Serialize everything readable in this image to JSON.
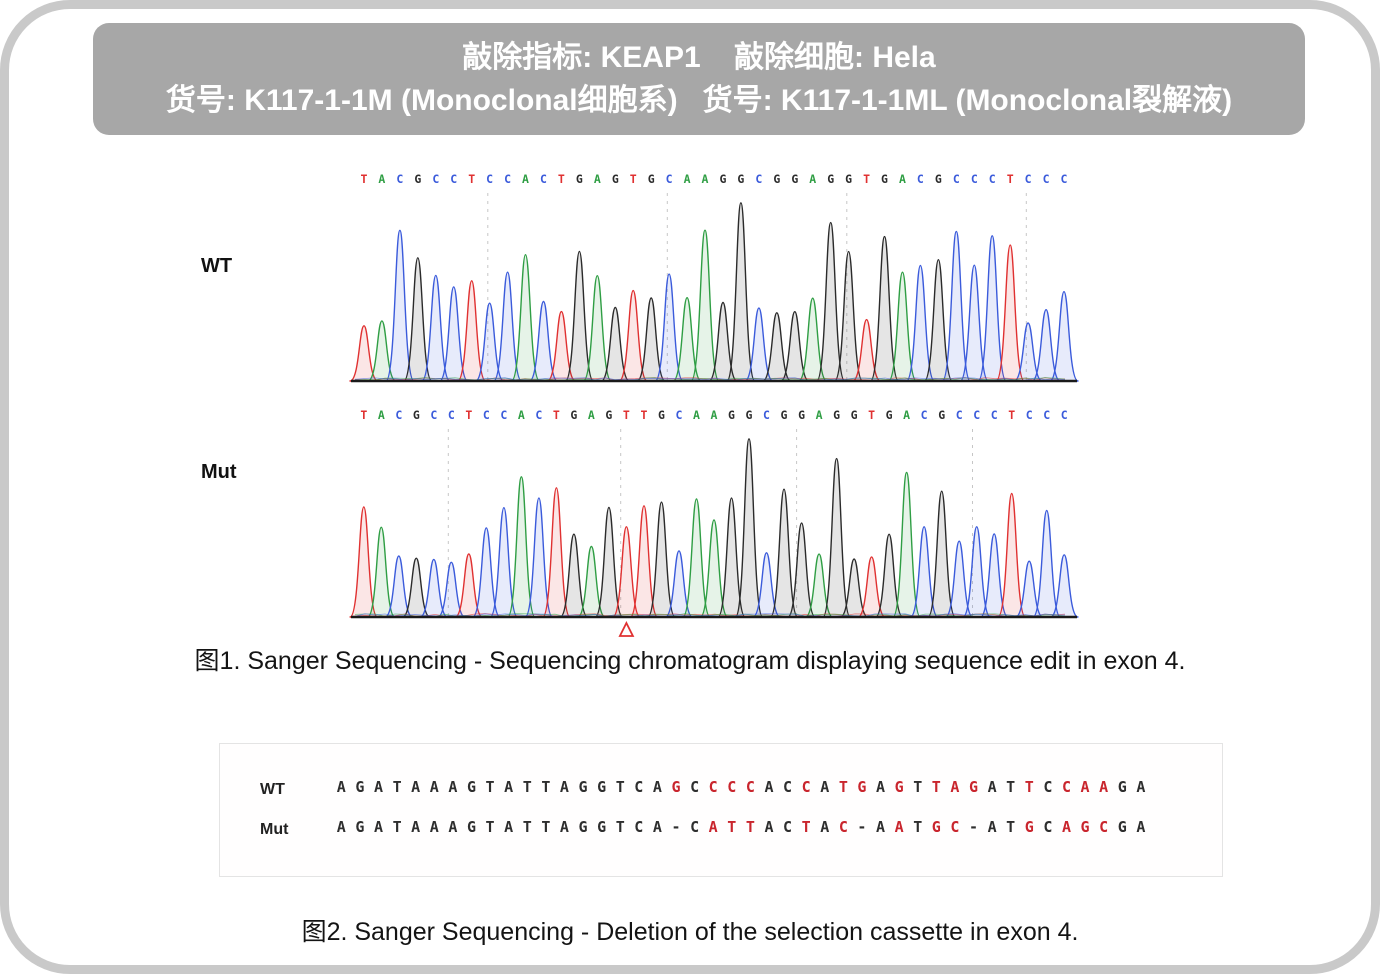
{
  "header": {
    "line1": "敲除指标: KEAP1    敲除细胞: Hela",
    "line2": "货号: K117-1-1M (Monoclonal细胞系)   货号: K117-1-1ML (Monoclonal裂解液)"
  },
  "chromatograms": [
    {
      "label": "WT",
      "sequence": "TACGCCTCCACTGAGTGCAAGGCGGAGGTGACGCCCTCCC",
      "edit_marker_index": null
    },
    {
      "label": "Mut",
      "sequence": "TACGCCTCCACTGAGTTGCAAGGCGGAGGTGACGCCCTCCC",
      "edit_marker_index": 15
    }
  ],
  "base_colors": {
    "A": "#2f9e44",
    "C": "#3b5bdb",
    "G": "#2b2b2b",
    "T": "#e03131"
  },
  "figure1_caption": "图1. Sanger Sequencing - Sequencing chromatogram displaying sequence edit in exon 4.",
  "alignment": {
    "rows": [
      {
        "label": "WT",
        "sequence": "AGATAAAGTATTAGGTCAGCCCCACCATGAGTTAGATTCCAAGA",
        "red_positions": [
          18,
          20,
          21,
          22,
          25,
          27,
          28,
          30,
          32,
          33,
          34,
          37,
          39,
          40,
          41
        ]
      },
      {
        "label": "Mut",
        "sequence": "AGATAAAGTATTAGGTCA-CATTACTAC-AATGC-ATGCAGCGA",
        "red_positions": [
          20,
          21,
          22,
          25,
          27,
          30,
          32,
          33,
          37,
          39,
          40,
          41
        ]
      }
    ],
    "colors": {
      "normal": "#2e2e2e",
      "highlight": "#c9252d"
    }
  },
  "figure2_caption": "图2. Sanger Sequencing - Deletion of the selection cassette in exon 4."
}
